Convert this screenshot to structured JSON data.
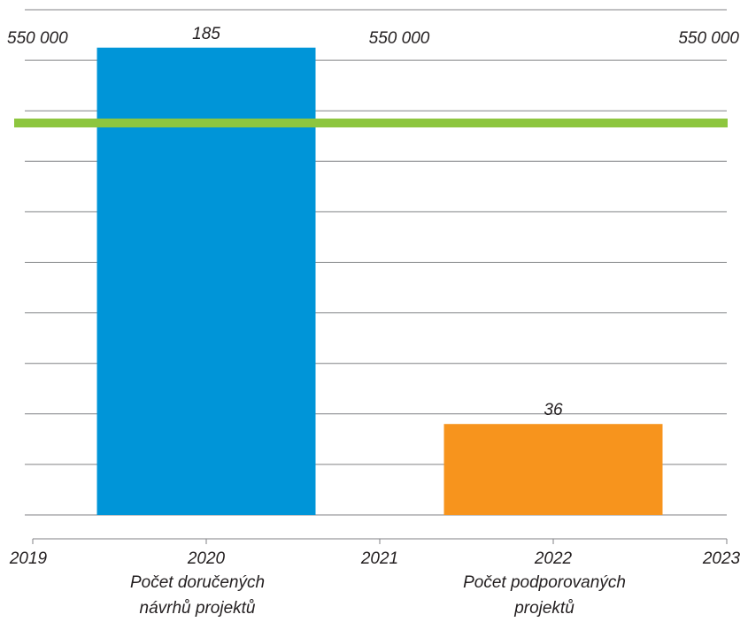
{
  "chart_data": {
    "type": "bar",
    "title": "",
    "xlabel": "",
    "ylabel": "",
    "categories": [
      "Počet doručených návrhů projektů",
      "Počet podporovaných projektů"
    ],
    "category_label_lines": [
      [
        "Počet doručených",
        "návrhů projektů"
      ],
      [
        "Počet podporovaných",
        "projektů"
      ]
    ],
    "values": [
      185,
      36
    ],
    "data_labels": [
      "185",
      "36"
    ],
    "bar_colors": [
      "#0095d8",
      "#f7941d"
    ],
    "bar_x_range": [
      [
        2019.37,
        2020.63
      ],
      [
        2021.37,
        2022.63
      ]
    ],
    "ylim": [
      0,
      200
    ],
    "grid": true,
    "grid_step": 20,
    "secondary_x_axis": {
      "ticks": [
        2019,
        2020,
        2021,
        2022,
        2023
      ],
      "labels": [
        "2019",
        "2020",
        "2021",
        "2022",
        "2023"
      ],
      "xlim": [
        2019,
        2023
      ]
    },
    "reference_line": {
      "value": 550000,
      "color": "#8dc63f",
      "labels": [
        "550 000",
        "550 000",
        "550 000"
      ],
      "label_x": [
        2019,
        2021,
        2023
      ]
    }
  }
}
